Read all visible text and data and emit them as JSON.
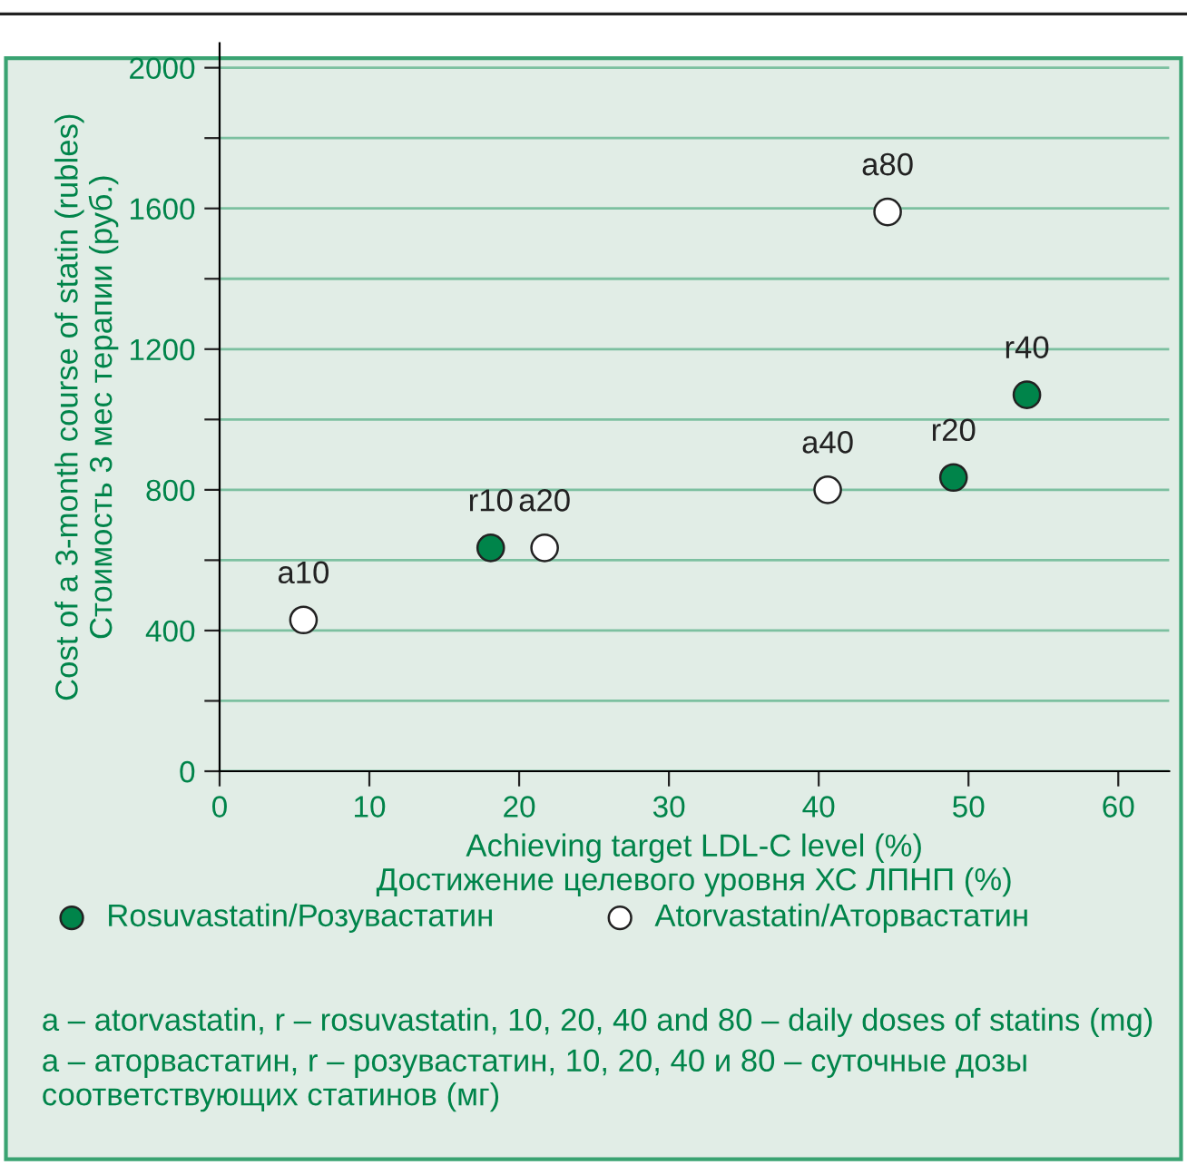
{
  "chart_data": {
    "type": "scatter",
    "xlabel": "Achieving target LDL-C level (%)\nДостижение целевого уровня ХС ЛПНП (%)",
    "ylabel": "Cost of a 3-month course of statin (rubles)\nСтоимость 3 мес терапии (руб.)",
    "series": [
      {
        "name": "Rosuvastatin/Розувастатин",
        "color": "#00844a",
        "x": [
          18.1,
          49,
          53.9
        ],
        "values": [
          635,
          835,
          1070
        ]
      },
      {
        "name": "Atorvastatin/Аторвастатин",
        "color": "#ffffff",
        "x": [
          5.6,
          21.7,
          40.6,
          44.6
        ],
        "values": [
          430,
          635,
          800,
          1590
        ]
      }
    ],
    "xlim": [
      0,
      63.4
    ],
    "xticks": [
      0,
      10,
      20,
      30,
      40,
      50,
      60
    ],
    "ylim": [
      0,
      2070
    ],
    "yticks": [
      0,
      {
        "value": 200,
        "label": null
      },
      400,
      {
        "value": 600,
        "label": null
      },
      800,
      {
        "value": 1000,
        "label": null
      },
      1200,
      {
        "value": 1400,
        "label": null
      },
      1600,
      {
        "value": 1800,
        "label": null
      },
      2000
    ],
    "grid": "y",
    "legend": "bottom",
    "marker": "circle",
    "annotations": [
      {
        "text": "a10",
        "x": 5.6,
        "y": 430
      },
      {
        "text": "r10",
        "x": 18.1,
        "y": 635
      },
      {
        "text": "a20",
        "x": 21.7,
        "y": 635
      },
      {
        "text": "a40",
        "x": 40.6,
        "y": 800
      },
      {
        "text": "a80",
        "x": 44.6,
        "y": 1590
      },
      {
        "text": "r20",
        "x": 49,
        "y": 835
      },
      {
        "text": "r40",
        "x": 53.9,
        "y": 1070
      },
      "a – atorvastatin, r – rosuvastatin, 10, 20, 40 and 80 – daily doses of statins (mg)",
      "а – аторвастатин, r – розувастатин, 10, 20, 40 и 80 – суточные дозы соответствующих статинов (мг)"
    ]
  }
}
